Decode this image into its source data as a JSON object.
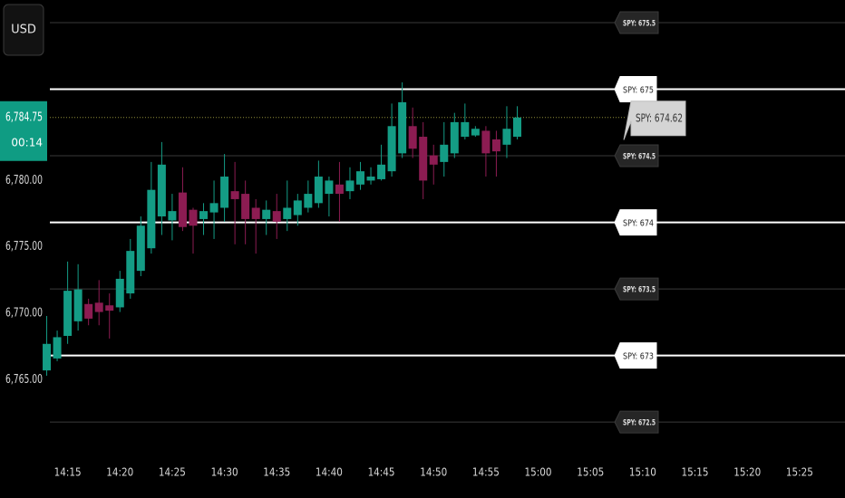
{
  "chart_data": {
    "type": "candlestick",
    "currency": "USD",
    "x": [
      "14:13",
      "14:14",
      "14:15",
      "14:16",
      "14:17",
      "14:18",
      "14:19",
      "14:20",
      "14:21",
      "14:22",
      "14:23",
      "14:24",
      "14:25",
      "14:26",
      "14:27",
      "14:28",
      "14:29",
      "14:30",
      "14:31",
      "14:32",
      "14:33",
      "14:34",
      "14:35",
      "14:36",
      "14:37",
      "14:38",
      "14:39",
      "14:40",
      "14:41",
      "14:42",
      "14:43",
      "14:44",
      "14:45",
      "14:46",
      "14:47",
      "14:48",
      "14:49",
      "14:50",
      "14:51",
      "14:52",
      "14:53",
      "14:54",
      "14:55",
      "14:56",
      "14:57",
      "14:58"
    ],
    "open": [
      6765.7,
      6766.6,
      6768.3,
      6769.4,
      6770.7,
      6770.8,
      6770.6,
      6770.45,
      6771.5,
      6773.2,
      6774.9,
      6777.3,
      6777.0,
      6779.1,
      6777.8,
      6777.1,
      6777.6,
      6777.95,
      6779.2,
      6779.0,
      6777.95,
      6777.1,
      6777.7,
      6777.1,
      6777.4,
      6777.95,
      6778.3,
      6779.0,
      6779.7,
      6779.2,
      6779.7,
      6780.0,
      6780.1,
      6780.7,
      6782.05,
      6784.1,
      6783.3,
      6781.9,
      6781.4,
      6782.05,
      6783.3,
      6783.4,
      6783.75,
      6783.1,
      6782.7,
      6783.3
    ],
    "high": [
      6769.8,
      6768.7,
      6773.9,
      6773.7,
      6771.1,
      6772.5,
      6771.5,
      6773.2,
      6775.6,
      6777.3,
      6781.4,
      6782.9,
      6779.0,
      6781.0,
      6777.95,
      6778.3,
      6780.0,
      6782.0,
      6781.4,
      6780.0,
      6778.6,
      6778.5,
      6779.0,
      6780.0,
      6779.0,
      6780.0,
      6781.5,
      6780.3,
      6781.4,
      6781.0,
      6781.4,
      6781.0,
      6782.7,
      6785.8,
      6787.4,
      6785.5,
      6784.4,
      6782.7,
      6784.4,
      6785.1,
      6785.8,
      6784.1,
      6784.1,
      6783.75,
      6785.6,
      6785.6
    ],
    "low": [
      6765.3,
      6766.4,
      6767.7,
      6768.7,
      6769.1,
      6769.1,
      6768.1,
      6770.1,
      6771.1,
      6772.8,
      6774.5,
      6775.9,
      6775.5,
      6776.2,
      6774.5,
      6775.9,
      6775.6,
      6776.9,
      6775.2,
      6775.2,
      6774.5,
      6775.9,
      6775.6,
      6776.2,
      6776.6,
      6777.6,
      6777.95,
      6777.3,
      6776.9,
      6778.6,
      6779.3,
      6779.7,
      6780.0,
      6780.3,
      6781.7,
      6781.7,
      6778.6,
      6779.7,
      6780.3,
      6781.7,
      6783.1,
      6783.3,
      6780.3,
      6780.3,
      6781.7,
      6783.1
    ],
    "close": [
      6767.7,
      6768.2,
      6771.7,
      6771.8,
      6769.6,
      6770.1,
      6770.2,
      6772.6,
      6774.7,
      6776.6,
      6779.3,
      6781.2,
      6777.7,
      6776.5,
      6776.6,
      6777.7,
      6778.3,
      6780.3,
      6778.6,
      6777.1,
      6777.1,
      6777.8,
      6776.9,
      6777.95,
      6778.5,
      6779.0,
      6780.3,
      6780.0,
      6779.0,
      6780.0,
      6780.7,
      6780.3,
      6781.2,
      6784.1,
      6785.9,
      6782.4,
      6780.0,
      6781.2,
      6782.7,
      6784.4,
      6784.4,
      6783.9,
      6782.05,
      6782.2,
      6783.9,
      6784.75
    ],
    "up_color": "#149c85",
    "down_color": "#8c1c52",
    "xlim": [
      "14:12",
      "15:29"
    ],
    "xticks": [
      "14:15",
      "14:20",
      "14:25",
      "14:30",
      "14:35",
      "14:40",
      "14:45",
      "14:50",
      "14:55",
      "15:00",
      "15:05",
      "15:10",
      "15:15",
      "15:20",
      "15:25"
    ],
    "ylim": [
      6759.5,
      6793.6
    ],
    "yticks": [
      {
        "value": 6780,
        "label": "6,780.00"
      },
      {
        "value": 6775,
        "label": "6,775.00"
      },
      {
        "value": 6770,
        "label": "6,770.00"
      },
      {
        "value": 6765,
        "label": "6,765.00"
      }
    ],
    "current_price": {
      "value": 6784.75,
      "label": "6,784.75"
    },
    "countdown": "00:14",
    "y2lim": [
      672.27,
      675.67
    ],
    "levels": [
      {
        "value": 675.5,
        "label": "SPY: 675.5",
        "major": false
      },
      {
        "value": 675,
        "label": "SPY: 675",
        "major": true
      },
      {
        "value": 674.5,
        "label": "SPY: 674.5",
        "major": false
      },
      {
        "value": 674,
        "label": "SPY: 674",
        "major": true
      },
      {
        "value": 673.5,
        "label": "SPY: 673.5",
        "major": false
      },
      {
        "value": 673,
        "label": "SPY: 673",
        "major": true
      },
      {
        "value": 672.5,
        "label": "SPY: 672.5",
        "major": false
      }
    ],
    "current_level": {
      "value": 674.62,
      "label": "SPY: 674.62"
    }
  }
}
